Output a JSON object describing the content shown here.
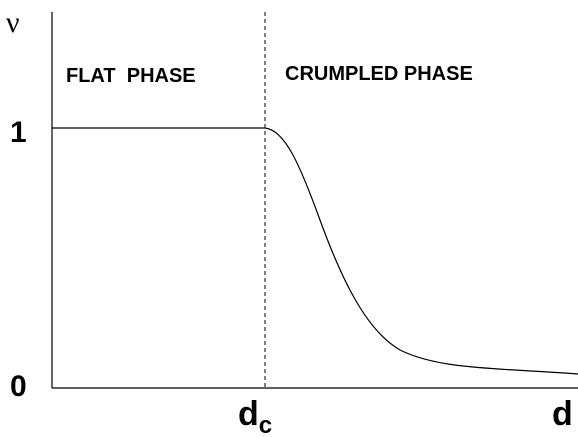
{
  "axis": {
    "y_label": "ν",
    "x_label": "d",
    "y_top": "1",
    "y_bottom": "0",
    "x_mark": "d",
    "x_mark_sub": "c"
  },
  "regions": {
    "left": "FLAT  PHASE",
    "right": "CRUMPLED PHASE"
  }
}
